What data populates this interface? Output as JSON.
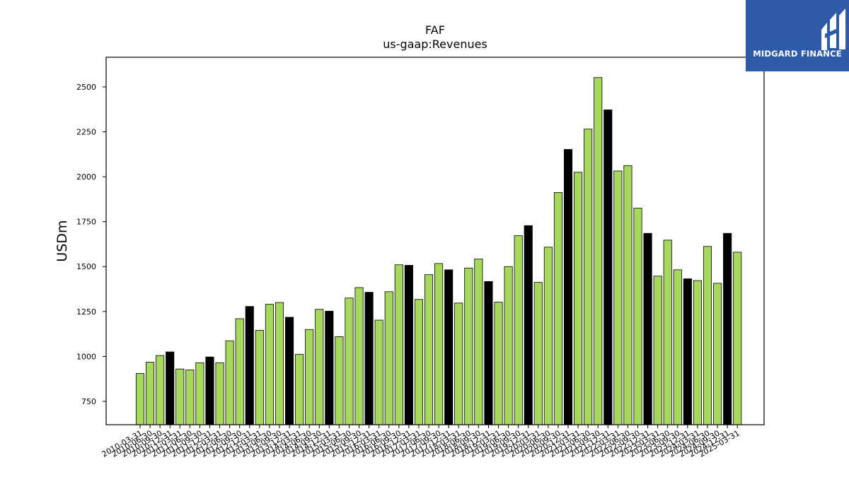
{
  "chart_data": {
    "type": "bar",
    "title": "FAF",
    "subtitle": "us-gaap:Revenues",
    "xlabel": "",
    "ylabel": "USDm",
    "ylim": [
      620,
      2665
    ],
    "yticks": [
      750,
      1000,
      1250,
      1500,
      1750,
      2000,
      2250,
      2500
    ],
    "grid": false,
    "colors": {
      "quarter": "#a6d85e",
      "annual": "#000000",
      "edge": "#000000"
    },
    "categories": [
      "2010-03-31",
      "2010-06-30",
      "2010-09-30",
      "2010-12-31",
      "2011-03-31",
      "2011-06-30",
      "2011-09-30",
      "2011-12-31",
      "2012-03-31",
      "2012-06-30",
      "2012-09-30",
      "2012-12-31",
      "2013-03-31",
      "2013-06-30",
      "2013-09-30",
      "2013-12-31",
      "2014-03-31",
      "2014-06-30",
      "2014-09-30",
      "2014-12-31",
      "2015-03-31",
      "2015-06-30",
      "2015-09-30",
      "2015-12-31",
      "2016-03-31",
      "2016-06-30",
      "2016-09-30",
      "2016-12-31",
      "2017-03-31",
      "2017-06-30",
      "2017-09-30",
      "2017-12-31",
      "2018-03-31",
      "2018-06-30",
      "2018-09-30",
      "2018-12-31",
      "2019-03-31",
      "2019-06-30",
      "2019-09-30",
      "2019-12-31",
      "2020-03-31",
      "2020-06-30",
      "2020-09-30",
      "2020-12-31",
      "2021-03-31",
      "2021-06-30",
      "2021-09-30",
      "2021-12-31",
      "2022-03-31",
      "2022-06-30",
      "2022-09-30",
      "2022-12-31",
      "2023-03-31",
      "2023-06-30",
      "2023-09-30",
      "2023-12-31",
      "2024-03-31",
      "2024-06-30",
      "2024-09-30",
      "2024-12-31",
      "2025-03-31"
    ],
    "values": [
      905,
      968,
      1005,
      1025,
      930,
      925,
      965,
      997,
      965,
      1087,
      1210,
      1278,
      1145,
      1290,
      1300,
      1218,
      1012,
      1150,
      1262,
      1252,
      1110,
      1325,
      1383,
      1357,
      1202,
      1360,
      1510,
      1507,
      1317,
      1455,
      1517,
      1482,
      1297,
      1492,
      1542,
      1417,
      1302,
      1500,
      1672,
      1728,
      1412,
      1608,
      1912,
      2152,
      2025,
      2265,
      2552,
      2372,
      2032,
      2062,
      1825,
      1685,
      1447,
      1647,
      1482,
      1432,
      1422,
      1612,
      1407,
      1685,
      1580
    ],
    "annual": [
      false,
      false,
      false,
      true,
      false,
      false,
      false,
      true,
      false,
      false,
      false,
      true,
      false,
      false,
      false,
      true,
      false,
      false,
      false,
      true,
      false,
      false,
      false,
      true,
      false,
      false,
      false,
      true,
      false,
      false,
      false,
      true,
      false,
      false,
      false,
      true,
      false,
      false,
      false,
      true,
      false,
      false,
      false,
      true,
      false,
      false,
      false,
      true,
      false,
      false,
      false,
      true,
      false,
      false,
      false,
      true,
      false,
      false,
      false,
      true,
      false
    ]
  },
  "logo": {
    "text": "MIDGARD FINANCE",
    "bg": "#2f5aa8"
  }
}
